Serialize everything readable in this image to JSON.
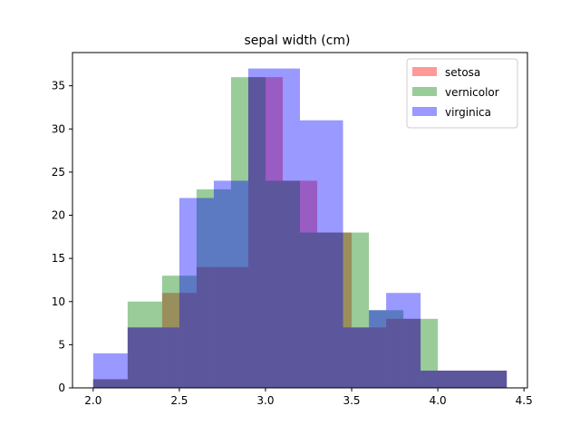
{
  "chart_data": {
    "type": "bar",
    "title": "sepal width (cm)",
    "xlabel": "",
    "ylabel": "",
    "xlim": [
      1.88,
      4.52
    ],
    "ylim": [
      0,
      38.85
    ],
    "x_ticks": [
      2.0,
      2.5,
      3.0,
      3.5,
      4.0,
      4.5
    ],
    "x_tick_labels": [
      "2.0",
      "2.5",
      "3.0",
      "3.5",
      "4.0",
      "4.5"
    ],
    "y_ticks": [
      0,
      5,
      10,
      15,
      20,
      25,
      30,
      35
    ],
    "y_tick_labels": [
      "0",
      "5",
      "10",
      "15",
      "20",
      "25",
      "30",
      "35"
    ],
    "grid": false,
    "legend_position": "top-right",
    "series": [
      {
        "name": "setosa",
        "color": "#ff0000",
        "opacity": 0.4,
        "bins": [
          {
            "x0": 2.2,
            "x1": 2.4,
            "value": 7
          },
          {
            "x0": 2.4,
            "x1": 2.6,
            "value": 11
          },
          {
            "x0": 2.6,
            "x1": 2.9,
            "value": 14
          },
          {
            "x0": 2.9,
            "x1": 3.1,
            "value": 36
          },
          {
            "x0": 3.1,
            "x1": 3.3,
            "value": 24
          },
          {
            "x0": 3.3,
            "x1": 3.5,
            "value": 18
          },
          {
            "x0": 3.5,
            "x1": 3.7,
            "value": 7
          },
          {
            "x0": 3.7,
            "x1": 3.9,
            "value": 8
          },
          {
            "x0": 3.9,
            "x1": 4.4,
            "value": 2
          },
          {
            "x0": 2.0,
            "x1": 2.2,
            "value": 1
          }
        ]
      },
      {
        "name": "vernicolor",
        "color": "#008000",
        "opacity": 0.4,
        "bins": [
          {
            "x0": 2.0,
            "x1": 2.2,
            "value": 1
          },
          {
            "x0": 2.2,
            "x1": 2.4,
            "value": 10
          },
          {
            "x0": 2.4,
            "x1": 2.6,
            "value": 13
          },
          {
            "x0": 2.6,
            "x1": 2.8,
            "value": 23
          },
          {
            "x0": 2.8,
            "x1": 3.0,
            "value": 36
          },
          {
            "x0": 3.0,
            "x1": 3.2,
            "value": 24
          },
          {
            "x0": 3.2,
            "x1": 3.4,
            "value": 18
          },
          {
            "x0": 3.4,
            "x1": 3.6,
            "value": 18
          },
          {
            "x0": 3.6,
            "x1": 3.8,
            "value": 9
          },
          {
            "x0": 3.8,
            "x1": 4.0,
            "value": 8
          },
          {
            "x0": 4.0,
            "x1": 4.4,
            "value": 2
          }
        ]
      },
      {
        "name": "virginica",
        "color": "#0000ff",
        "opacity": 0.4,
        "bins": [
          {
            "x0": 2.0,
            "x1": 2.2,
            "value": 4
          },
          {
            "x0": 2.2,
            "x1": 2.5,
            "value": 7
          },
          {
            "x0": 2.5,
            "x1": 2.7,
            "value": 22
          },
          {
            "x0": 2.7,
            "x1": 2.9,
            "value": 24
          },
          {
            "x0": 2.9,
            "x1": 3.2,
            "value": 37
          },
          {
            "x0": 3.2,
            "x1": 3.45,
            "value": 31
          },
          {
            "x0": 3.45,
            "x1": 3.6,
            "value": 7
          },
          {
            "x0": 3.6,
            "x1": 3.7,
            "value": 9
          },
          {
            "x0": 3.7,
            "x1": 3.9,
            "value": 11
          },
          {
            "x0": 3.9,
            "x1": 4.4,
            "value": 2
          }
        ]
      }
    ]
  }
}
